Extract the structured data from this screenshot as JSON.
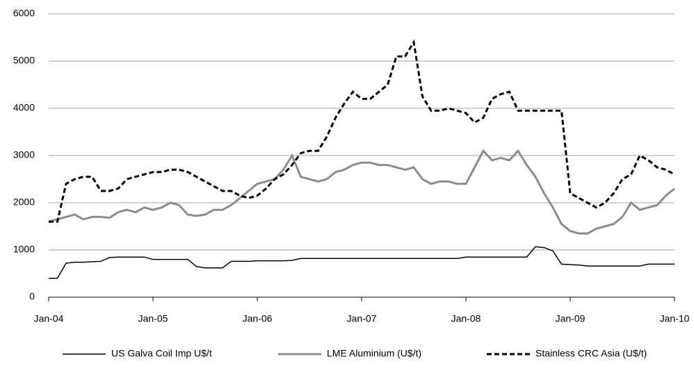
{
  "chart_data": {
    "type": "line",
    "categories": [
      "Jan-04",
      null,
      null,
      null,
      null,
      null,
      null,
      null,
      null,
      null,
      null,
      null,
      "Jan-05",
      null,
      null,
      null,
      null,
      null,
      null,
      null,
      null,
      null,
      null,
      null,
      "Jan-06",
      null,
      null,
      null,
      null,
      null,
      null,
      null,
      null,
      null,
      null,
      null,
      "Jan-07",
      null,
      null,
      null,
      null,
      null,
      null,
      null,
      null,
      null,
      null,
      null,
      "Jan-08",
      null,
      null,
      null,
      null,
      null,
      null,
      null,
      null,
      null,
      null,
      null,
      "Jan-09",
      null,
      null,
      null,
      null,
      null,
      null,
      null,
      null,
      null,
      null,
      null,
      "Jan-10"
    ],
    "series": [
      {
        "name": "US Galva Coil Imp U$/t",
        "color": "#000000",
        "style": "thin",
        "values": [
          400,
          400,
          720,
          740,
          740,
          750,
          760,
          840,
          850,
          850,
          850,
          850,
          800,
          800,
          800,
          800,
          800,
          650,
          620,
          620,
          620,
          760,
          760,
          760,
          770,
          770,
          770,
          770,
          780,
          820,
          820,
          820,
          820,
          820,
          820,
          820,
          820,
          820,
          820,
          820,
          820,
          820,
          820,
          820,
          820,
          820,
          820,
          820,
          850,
          850,
          850,
          850,
          850,
          850,
          850,
          850,
          1070,
          1050,
          980,
          700,
          690,
          680,
          660,
          660,
          660,
          660,
          660,
          660,
          660,
          700,
          700,
          700,
          700
        ]
      },
      {
        "name": "LME Aluminium (U$/t)",
        "color": "#8c8c8c",
        "style": "thick",
        "values": [
          1600,
          1650,
          1700,
          1750,
          1650,
          1700,
          1700,
          1680,
          1800,
          1850,
          1800,
          1900,
          1850,
          1900,
          2000,
          1950,
          1750,
          1720,
          1750,
          1850,
          1850,
          1950,
          2100,
          2250,
          2400,
          2450,
          2500,
          2700,
          3000,
          2550,
          2500,
          2450,
          2500,
          2650,
          2700,
          2800,
          2850,
          2850,
          2800,
          2800,
          2750,
          2700,
          2750,
          2500,
          2400,
          2450,
          2450,
          2400,
          2400,
          2750,
          3100,
          2900,
          2950,
          2900,
          3100,
          2800,
          2550,
          2200,
          1900,
          1550,
          1400,
          1350,
          1350,
          1450,
          1500,
          1550,
          1700,
          2000,
          1850,
          1900,
          1950,
          2150,
          2300
        ]
      },
      {
        "name": "Stainless CRC Asia (U$/t)",
        "color": "#000000",
        "style": "dashed",
        "values": [
          1600,
          1600,
          2400,
          2500,
          2550,
          2550,
          2250,
          2250,
          2300,
          2500,
          2550,
          2600,
          2650,
          2650,
          2700,
          2700,
          2650,
          2550,
          2450,
          2350,
          2250,
          2250,
          2150,
          2100,
          2150,
          2300,
          2500,
          2600,
          2800,
          3050,
          3100,
          3100,
          3400,
          3800,
          4100,
          4350,
          4200,
          4200,
          4350,
          4500,
          5100,
          5100,
          5400,
          4250,
          3950,
          3950,
          4000,
          3950,
          3900,
          3700,
          3800,
          4200,
          4300,
          4350,
          3950,
          3950,
          3950,
          3950,
          3950,
          3950,
          2200,
          2100,
          2000,
          1900,
          2000,
          2200,
          2500,
          2600,
          3000,
          2900,
          2750,
          2700,
          2600
        ]
      }
    ],
    "ylim": [
      0,
      6000
    ],
    "yticks": [
      0,
      1000,
      2000,
      3000,
      4000,
      5000,
      6000
    ],
    "grid": true,
    "legend": "bottom"
  }
}
